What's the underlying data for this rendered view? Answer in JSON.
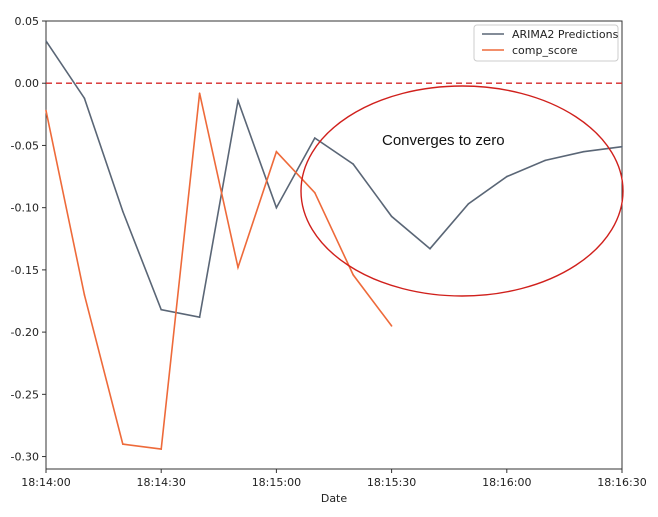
{
  "chart_data": {
    "type": "line",
    "xlabel": "Date",
    "ylabel": "",
    "title": "",
    "x_ticks": [
      "18:14:00",
      "18:14:30",
      "18:15:00",
      "18:15:30",
      "18:16:00",
      "18:16:30"
    ],
    "y_ticks": [
      "0.05",
      "0.00",
      "-0.05",
      "-0.10",
      "-0.15",
      "-0.20",
      "-0.25",
      "-0.30"
    ],
    "xlim": [
      "18:14:00",
      "18:16:30"
    ],
    "ylim": [
      -0.31,
      0.05
    ],
    "reference_line": {
      "y": 0.0,
      "color": "#d62728",
      "style": "dashed"
    },
    "series": [
      {
        "name": "ARIMA2 Predictions",
        "color": "#5a6676",
        "x": [
          "18:14:00",
          "18:14:10",
          "18:14:20",
          "18:14:30",
          "18:14:40",
          "18:14:50",
          "18:15:00",
          "18:15:10",
          "18:15:20",
          "18:15:30",
          "18:15:40",
          "18:15:50",
          "18:16:00",
          "18:16:10",
          "18:16:20",
          "18:16:30"
        ],
        "values": [
          0.034,
          -0.012,
          -0.103,
          -0.182,
          -0.188,
          -0.014,
          -0.1,
          -0.044,
          -0.065,
          -0.107,
          -0.133,
          -0.097,
          -0.075,
          -0.062,
          -0.055,
          -0.051
        ]
      },
      {
        "name": "comp_score",
        "color": "#ee6a3a",
        "x": [
          "18:14:00",
          "18:14:10",
          "18:14:20",
          "18:14:30",
          "18:14:40",
          "18:14:50",
          "18:15:00",
          "18:15:10",
          "18:15:20",
          "18:15:30"
        ],
        "values": [
          -0.022,
          -0.17,
          -0.29,
          -0.294,
          -0.008,
          -0.148,
          -0.055,
          -0.088,
          -0.154,
          -0.195
        ]
      }
    ],
    "legend": {
      "placement": "top-right"
    },
    "annotation": {
      "text": "Converges to zero",
      "shape": "ellipse",
      "color": "#d0201c"
    }
  }
}
